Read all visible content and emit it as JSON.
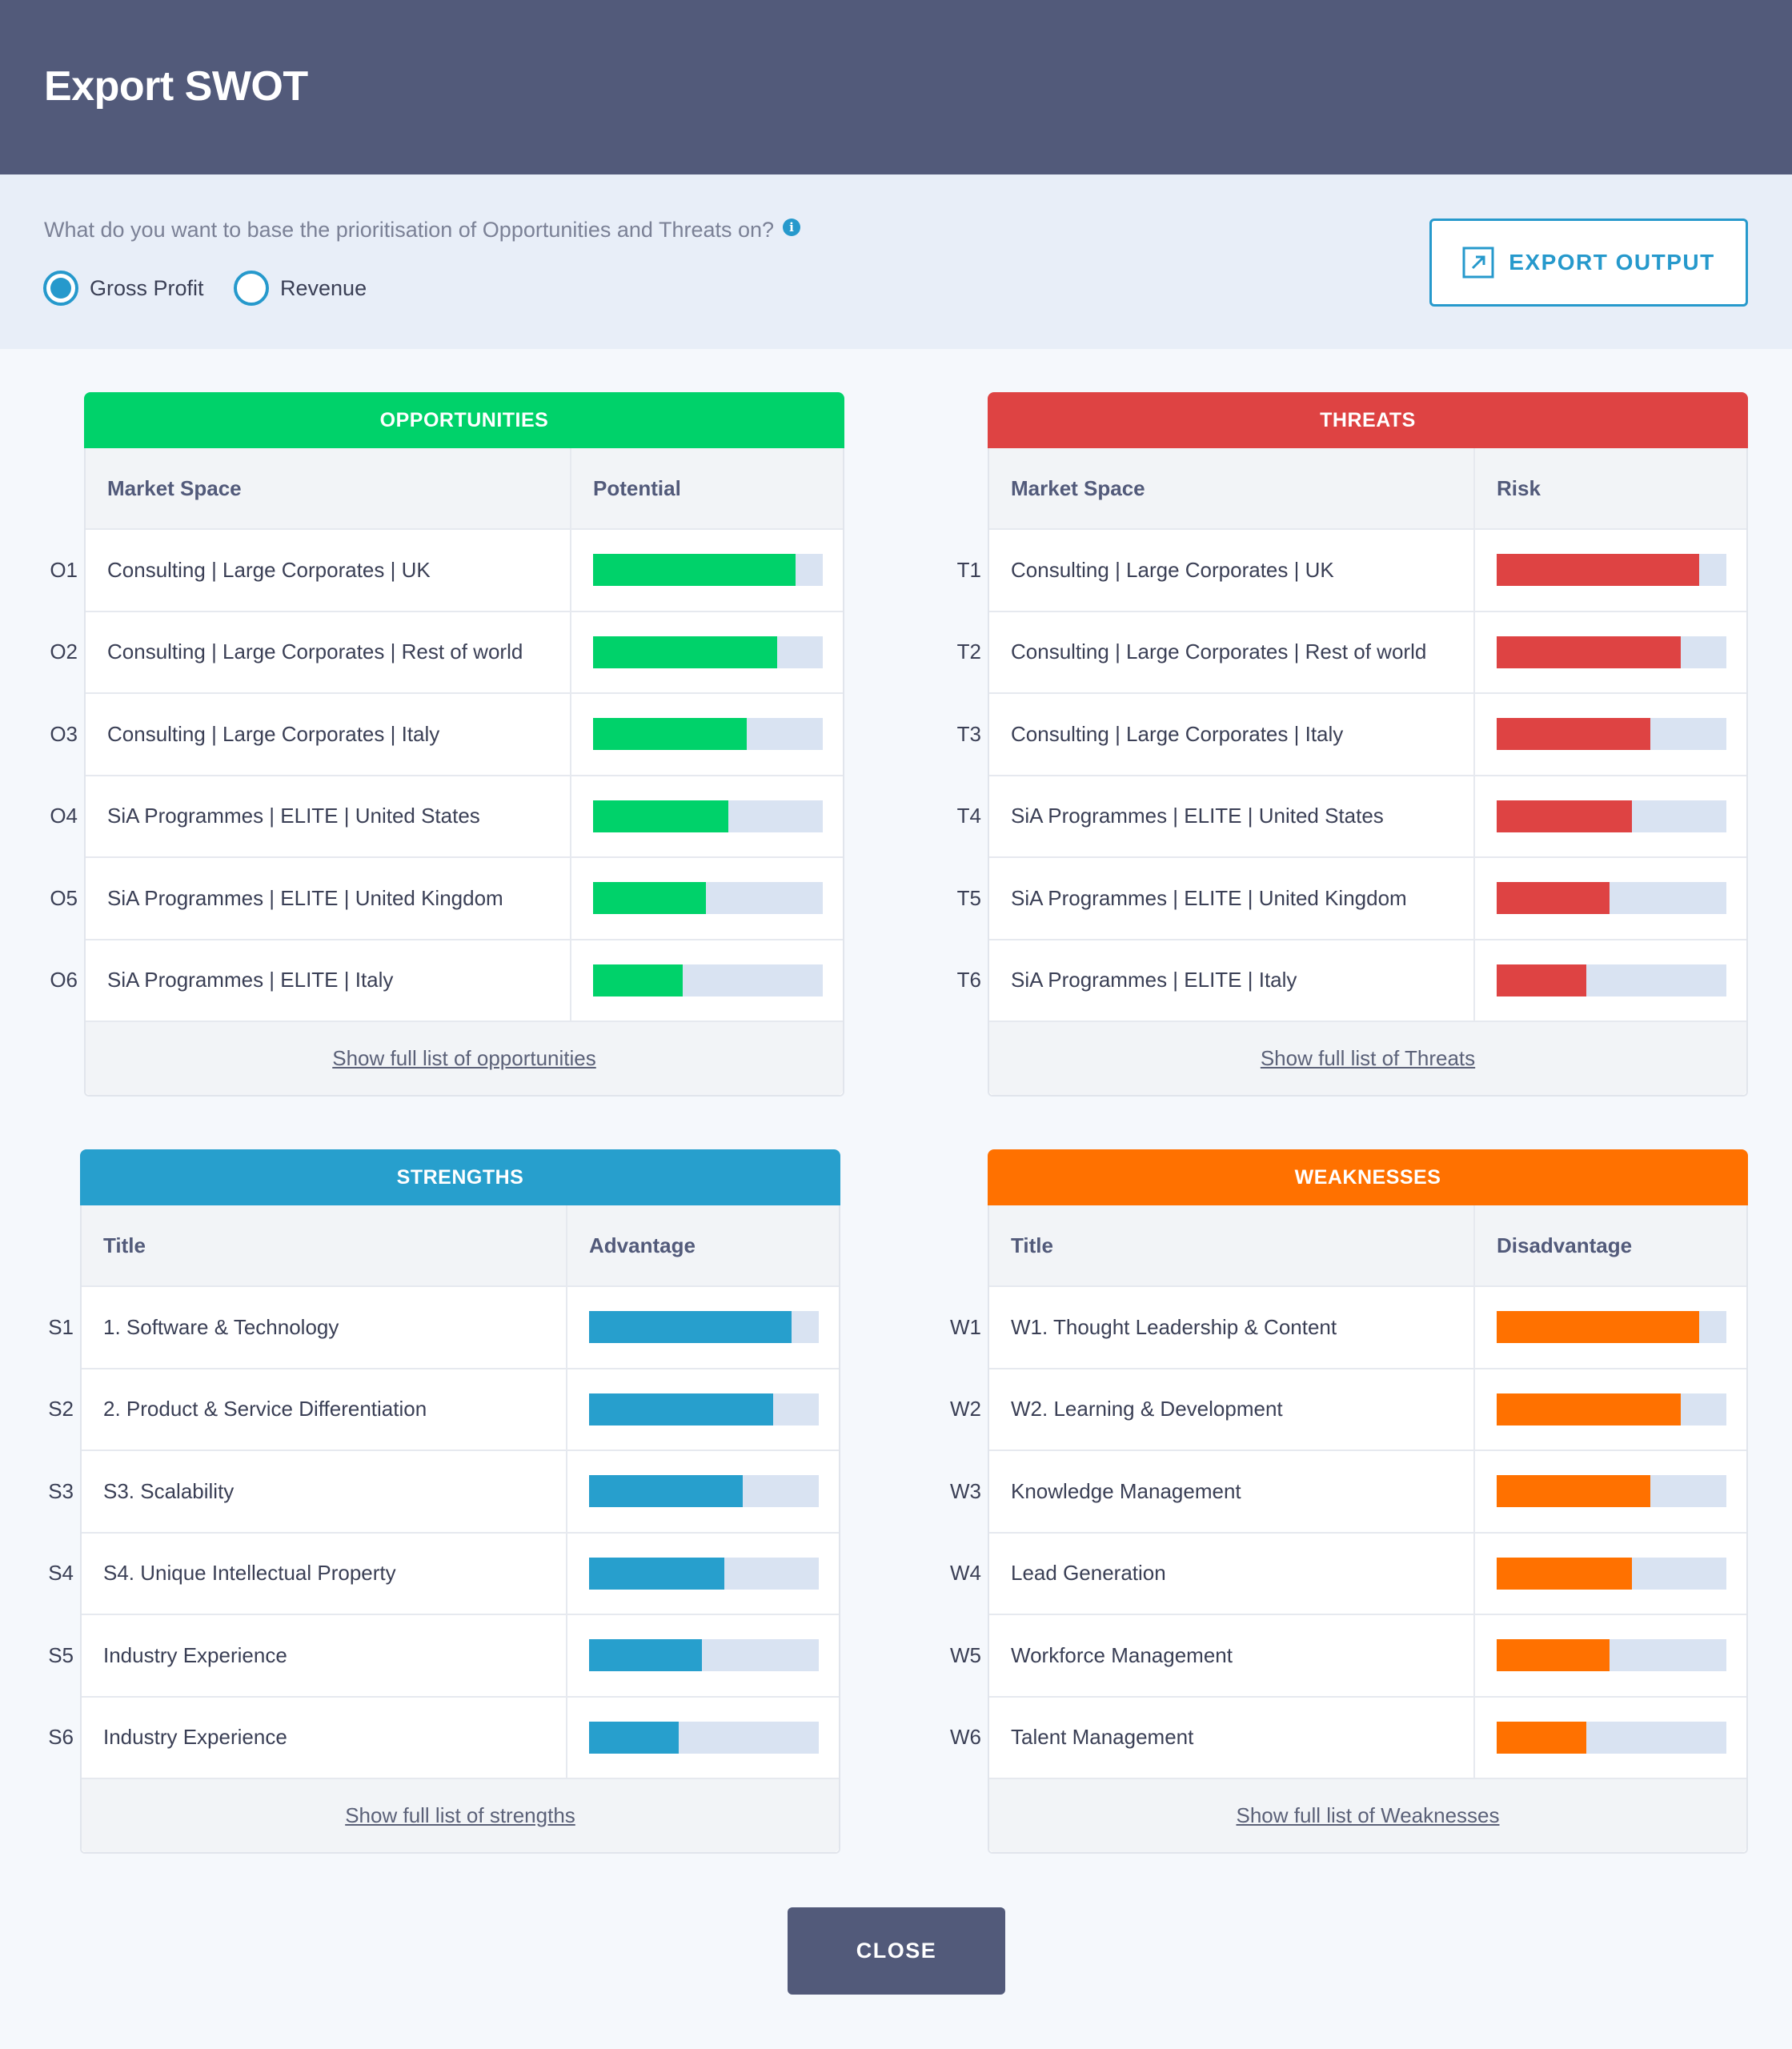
{
  "header": {
    "title": "Export SWOT"
  },
  "options": {
    "question": "What do you want to base the prioritisation of Opportunities and Threats on?",
    "info_icon": "i",
    "radios": [
      {
        "label": "Gross Profit",
        "checked": true
      },
      {
        "label": "Revenue",
        "checked": false
      }
    ],
    "export_label": "EXPORT OUTPUT"
  },
  "colors": {
    "opportunities": "#00d26a",
    "threats": "#de4343",
    "strengths": "#279fcd",
    "weaknesses": "#ff7100",
    "track": "#d9e3f2"
  },
  "panels": [
    {
      "key": "opportunities",
      "title": "OPPORTUNITIES",
      "col1": "Market Space",
      "col2": "Potential",
      "rows": [
        {
          "id": "O1",
          "label": "Consulting | Large Corporates | UK",
          "value": 0.88
        },
        {
          "id": "O2",
          "label": "Consulting | Large Corporates | Rest of world",
          "value": 0.8
        },
        {
          "id": "O3",
          "label": "Consulting | Large Corporates | Italy",
          "value": 0.67
        },
        {
          "id": "O4",
          "label": "SiA Programmes | ELITE | United States",
          "value": 0.59
        },
        {
          "id": "O5",
          "label": "SiA Programmes | ELITE | United Kingdom",
          "value": 0.49
        },
        {
          "id": "O6",
          "label": "SiA Programmes | ELITE | Italy",
          "value": 0.39
        }
      ],
      "footer": "Show full list of opportunities"
    },
    {
      "key": "threats",
      "title": "THREATS",
      "col1": "Market Space",
      "col2": "Risk",
      "rows": [
        {
          "id": "T1",
          "label": "Consulting | Large Corporates | UK",
          "value": 0.88
        },
        {
          "id": "T2",
          "label": "Consulting | Large Corporates | Rest of world",
          "value": 0.8
        },
        {
          "id": "T3",
          "label": "Consulting | Large Corporates | Italy",
          "value": 0.67
        },
        {
          "id": "T4",
          "label": "SiA Programmes | ELITE | United States",
          "value": 0.59
        },
        {
          "id": "T5",
          "label": "SiA Programmes | ELITE | United Kingdom",
          "value": 0.49
        },
        {
          "id": "T6",
          "label": "SiA Programmes | ELITE | Italy",
          "value": 0.39
        }
      ],
      "footer": "Show full list of Threats"
    },
    {
      "key": "strengths",
      "title": "STRENGTHS",
      "col1": "Title",
      "col2": "Advantage",
      "rows": [
        {
          "id": "S1",
          "label": "1. Software & Technology",
          "value": 0.88
        },
        {
          "id": "S2",
          "label": "2. Product & Service Differentiation",
          "value": 0.8
        },
        {
          "id": "S3",
          "label": "S3. Scalability",
          "value": 0.67
        },
        {
          "id": "S4",
          "label": "S4. Unique Intellectual Property",
          "value": 0.59
        },
        {
          "id": "S5",
          "label": "Industry Experience",
          "value": 0.49
        },
        {
          "id": "S6",
          "label": "Industry Experience",
          "value": 0.39
        }
      ],
      "footer": "Show full list of strengths"
    },
    {
      "key": "weaknesses",
      "title": "WEAKNESSES",
      "col1": "Title",
      "col2": "Disadvantage",
      "rows": [
        {
          "id": "W1",
          "label": "W1. Thought Leadership & Content",
          "value": 0.88
        },
        {
          "id": "W2",
          "label": "W2. Learning & Development",
          "value": 0.8
        },
        {
          "id": "W3",
          "label": "Knowledge Management",
          "value": 0.67
        },
        {
          "id": "W4",
          "label": "Lead Generation",
          "value": 0.59
        },
        {
          "id": "W5",
          "label": "Workforce Management",
          "value": 0.49
        },
        {
          "id": "W6",
          "label": "Talent Management",
          "value": 0.39
        }
      ],
      "footer": "Show full list of Weaknesses"
    }
  ],
  "close_label": "CLOSE"
}
